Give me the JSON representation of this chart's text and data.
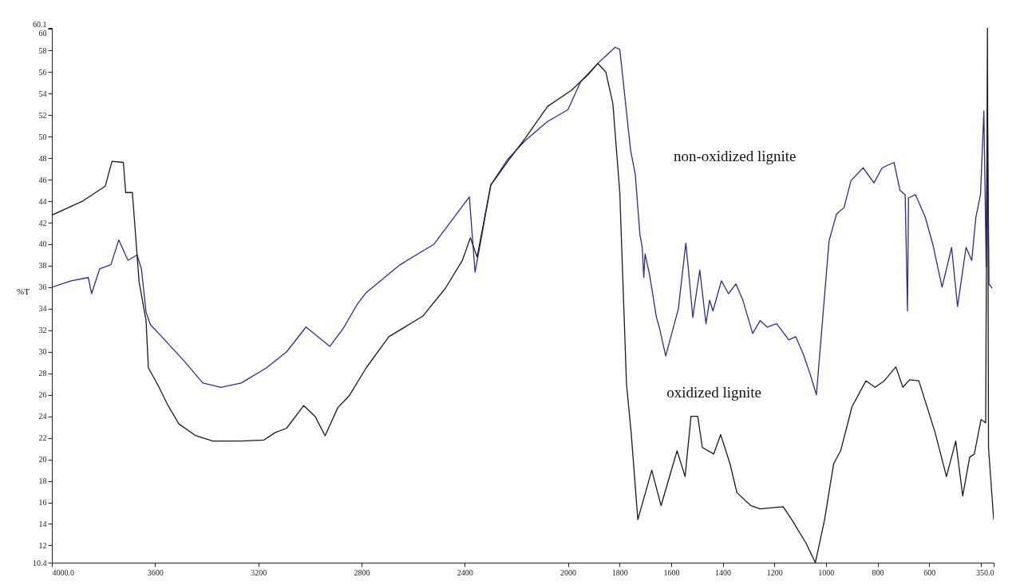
{
  "chart_data": {
    "type": "line",
    "ylabel": "%T",
    "xlim": [
      4000,
      350
    ],
    "ylim": [
      10.4,
      60.1
    ],
    "xticks": [
      {
        "value": 4000,
        "label": "4000.0"
      },
      3600,
      3200,
      2800,
      2400,
      2000,
      1800,
      1600,
      1400,
      1200,
      1000,
      800,
      600,
      {
        "value": 400,
        "label": null
      },
      {
        "value": 350,
        "label": "350.0"
      }
    ],
    "yticks": [
      10.4,
      12,
      14,
      16,
      18,
      20,
      22,
      24,
      26,
      28,
      30,
      32,
      34,
      36,
      38,
      40,
      42,
      44,
      46,
      48,
      50,
      52,
      54,
      56,
      58,
      60,
      60.1
    ],
    "grid": false,
    "line_style": "solid",
    "marker": "none",
    "series": [
      {
        "color": "#2b2b9b",
        "x": [
          4000,
          3925,
          3859,
          3846,
          3815,
          3771,
          3741,
          3705,
          3670,
          3653,
          3635,
          3618,
          3574,
          3486,
          3415,
          3345,
          3266,
          3169,
          3090,
          3015,
          2923,
          2870,
          2817,
          2782,
          2650,
          2519,
          2382,
          2360,
          2343,
          2299,
          2233,
          2167,
          2079,
          2000,
          1951,
          1880,
          1817,
          1799,
          1757,
          1739,
          1721,
          1712,
          1706,
          1701,
          1684,
          1657,
          1646,
          1621,
          1572,
          1543,
          1534,
          1516,
          1489,
          1465,
          1451,
          1438,
          1405,
          1378,
          1349,
          1322,
          1284,
          1255,
          1228,
          1191,
          1144,
          1117,
          1088,
          1061,
          1037,
          988,
          959,
          930,
          903,
          856,
          814,
          782,
          736,
          713,
          693,
          684,
          680,
          653,
          615,
          586,
          550,
          513,
          490,
          457,
          435,
          419,
          401,
          388,
          379,
          374,
          368,
          356
        ],
        "values": [
          36.0,
          36.6,
          36.9,
          35.4,
          37.7,
          38.1,
          40.4,
          38.5,
          39.0,
          37.7,
          33.7,
          32.5,
          31.4,
          29.1,
          27.1,
          26.7,
          27.1,
          28.5,
          30.0,
          32.3,
          30.5,
          32.2,
          34.4,
          35.5,
          38.1,
          40.0,
          44.4,
          37.4,
          39.6,
          45.5,
          47.9,
          49.6,
          51.4,
          52.5,
          55.1,
          56.9,
          58.3,
          58.1,
          48.7,
          46.5,
          40.9,
          39.7,
          36.9,
          39.1,
          37.2,
          33.2,
          32.3,
          29.6,
          34.0,
          40.1,
          37.9,
          33.2,
          37.6,
          32.6,
          34.8,
          33.8,
          36.6,
          35.4,
          36.3,
          34.8,
          31.7,
          32.9,
          32.3,
          32.6,
          31.1,
          31.4,
          29.8,
          27.9,
          26.0,
          40.3,
          42.8,
          43.4,
          45.9,
          47.1,
          45.7,
          47.1,
          47.6,
          45.0,
          44.6,
          33.8,
          44.3,
          44.6,
          42.5,
          40.0,
          36.0,
          39.7,
          34.2,
          39.7,
          38.5,
          42.5,
          44.6,
          52.4,
          37.9,
          52.4,
          36.3,
          35.9
        ]
      },
      {
        "color": "#1a1a1a",
        "x": [
          4000,
          3881,
          3793,
          3767,
          3723,
          3714,
          3688,
          3662,
          3635,
          3626,
          3591,
          3552,
          3508,
          3442,
          3376,
          3266,
          3178,
          3134,
          3090,
          3024,
          2980,
          2941,
          2892,
          2848,
          2782,
          2694,
          2563,
          2475,
          2409,
          2378,
          2352,
          2299,
          2233,
          2167,
          2079,
          1987,
          1924,
          1884,
          1853,
          1826,
          1799,
          1773,
          1755,
          1729,
          1675,
          1639,
          1577,
          1546,
          1523,
          1497,
          1479,
          1435,
          1408,
          1372,
          1345,
          1291,
          1255,
          1166,
          1130,
          1077,
          1041,
          1006,
          970,
          943,
          899,
          845,
          810,
          774,
          729,
          702,
          676,
          640,
          577,
          533,
          497,
          470,
          443,
          425,
          399,
          381,
          374,
          370,
          350
        ],
        "values": [
          42.7,
          44.0,
          45.4,
          47.7,
          47.6,
          44.8,
          44.8,
          36.5,
          32.9,
          28.5,
          27.0,
          25.1,
          23.3,
          22.2,
          21.7,
          21.7,
          21.8,
          22.5,
          22.9,
          25.0,
          24.0,
          22.2,
          24.8,
          25.9,
          28.5,
          31.4,
          33.3,
          35.9,
          38.5,
          40.6,
          38.8,
          45.5,
          47.7,
          49.8,
          52.8,
          54.3,
          55.7,
          56.8,
          56.0,
          53.1,
          44.8,
          27.0,
          22.5,
          14.4,
          19.0,
          15.7,
          20.8,
          18.4,
          24.0,
          24.0,
          21.1,
          20.5,
          22.3,
          19.6,
          16.9,
          15.7,
          15.4,
          15.6,
          14.3,
          12.2,
          10.4,
          14.3,
          19.6,
          20.8,
          24.9,
          27.3,
          26.7,
          27.3,
          28.6,
          26.7,
          27.4,
          27.3,
          22.5,
          18.4,
          21.7,
          16.6,
          20.2,
          20.5,
          23.7,
          23.4,
          60.1,
          21.1,
          14.4
        ]
      }
    ],
    "annotations": [
      {
        "text": "non-oxidized lignite",
        "x": 1739,
        "y": 46.5
      },
      {
        "text": "oxidized lignite",
        "x": 1766,
        "y": 24.6
      }
    ]
  }
}
